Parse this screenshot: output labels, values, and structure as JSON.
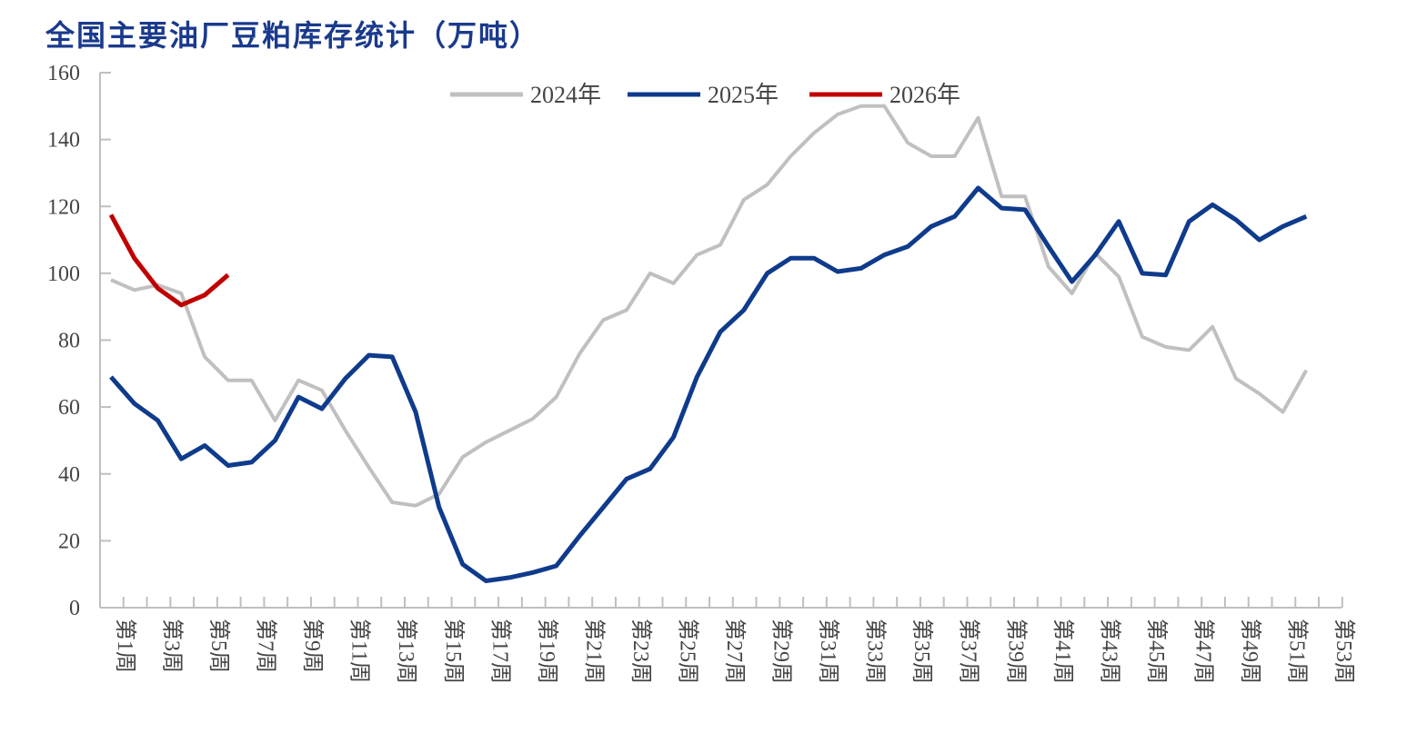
{
  "chart_data": {
    "type": "line",
    "title": "全国主要油厂豆粕库存统计（万吨）",
    "xlabel": "",
    "ylabel": "",
    "ylim": [
      0,
      160
    ],
    "yticks": [
      0,
      20,
      40,
      60,
      80,
      100,
      120,
      140,
      160
    ],
    "x_range_weeks": [
      1,
      53
    ],
    "xtick_labels": [
      "第1周",
      "第3周",
      "第5周",
      "第7周",
      "第9周",
      "第11周",
      "第13周",
      "第15周",
      "第17周",
      "第19周",
      "第21周",
      "第23周",
      "第25周",
      "第27周",
      "第29周",
      "第31周",
      "第33周",
      "第35周",
      "第37周",
      "第39周",
      "第41周",
      "第43周",
      "第45周",
      "第47周",
      "第49周",
      "第51周",
      "第53周"
    ],
    "grid": false,
    "legend_position": "top-center",
    "series": [
      {
        "name": "2024年",
        "color": "#c0c0c0",
        "values": [
          98,
          95,
          96.5,
          94,
          75,
          68,
          68,
          56,
          68,
          65,
          53,
          42,
          31.5,
          30.5,
          34,
          45,
          49.5,
          53,
          56.5,
          63,
          76,
          86,
          89,
          100,
          97,
          105.5,
          108.5,
          122,
          126.5,
          135,
          142,
          147.5,
          150,
          150,
          139,
          135,
          135,
          146.5,
          123,
          123,
          102,
          94,
          106,
          99,
          81,
          78,
          77,
          84,
          68.5,
          64,
          58.5,
          71
        ]
      },
      {
        "name": "2025年",
        "color": "#0f3b8c",
        "values": [
          69,
          61,
          56,
          44.5,
          48.5,
          42.5,
          43.5,
          50,
          63,
          59.5,
          68.5,
          75.5,
          75,
          58.5,
          30,
          13,
          8,
          9,
          10.5,
          12.5,
          21.5,
          30,
          38.5,
          41.5,
          51,
          69,
          82.5,
          89,
          100,
          104.5,
          104.5,
          100.5,
          101.5,
          105.5,
          108,
          114,
          117,
          125.5,
          119.5,
          119,
          108,
          97.5,
          105.5,
          115.5,
          100,
          99.5,
          115.5,
          120.5,
          116,
          110,
          114,
          117
        ]
      },
      {
        "name": "2026年",
        "color": "#c00000",
        "values": [
          117.5,
          104.5,
          95.5,
          90.5,
          93.5,
          99.5
        ]
      }
    ]
  }
}
